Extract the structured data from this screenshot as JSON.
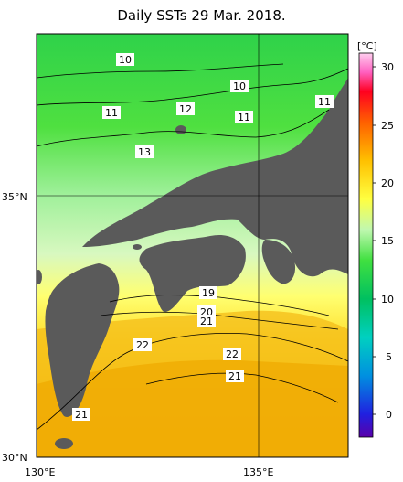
{
  "title": "Daily SSTs 29 Mar. 2018.",
  "axes": {
    "lat_labels": [
      "35°N",
      "30°N"
    ],
    "lon_labels": [
      "130°E",
      "135°E"
    ]
  },
  "colorbar": {
    "unit": "[°C]",
    "ticks": [
      "30",
      "25",
      "20",
      "15",
      "10",
      "5",
      "0"
    ]
  },
  "contour_labels": [
    {
      "id": "c10a",
      "text": "10"
    },
    {
      "id": "c10b",
      "text": "10"
    },
    {
      "id": "c11a",
      "text": "11"
    },
    {
      "id": "c11b",
      "text": "11"
    },
    {
      "id": "c11c",
      "text": "11"
    },
    {
      "id": "c12",
      "text": "12"
    },
    {
      "id": "c13",
      "text": "13"
    },
    {
      "id": "c19",
      "text": "19"
    },
    {
      "id": "c20",
      "text": "20"
    },
    {
      "id": "c21a",
      "text": "21"
    },
    {
      "id": "c22a",
      "text": "22"
    },
    {
      "id": "c22b",
      "text": "22"
    },
    {
      "id": "c21b",
      "text": "21"
    },
    {
      "id": "c21c",
      "text": "21"
    }
  ],
  "colors": {
    "land": "#5a5a5a",
    "north_sea": "#33d94a",
    "south_sea": "#f2b200"
  }
}
